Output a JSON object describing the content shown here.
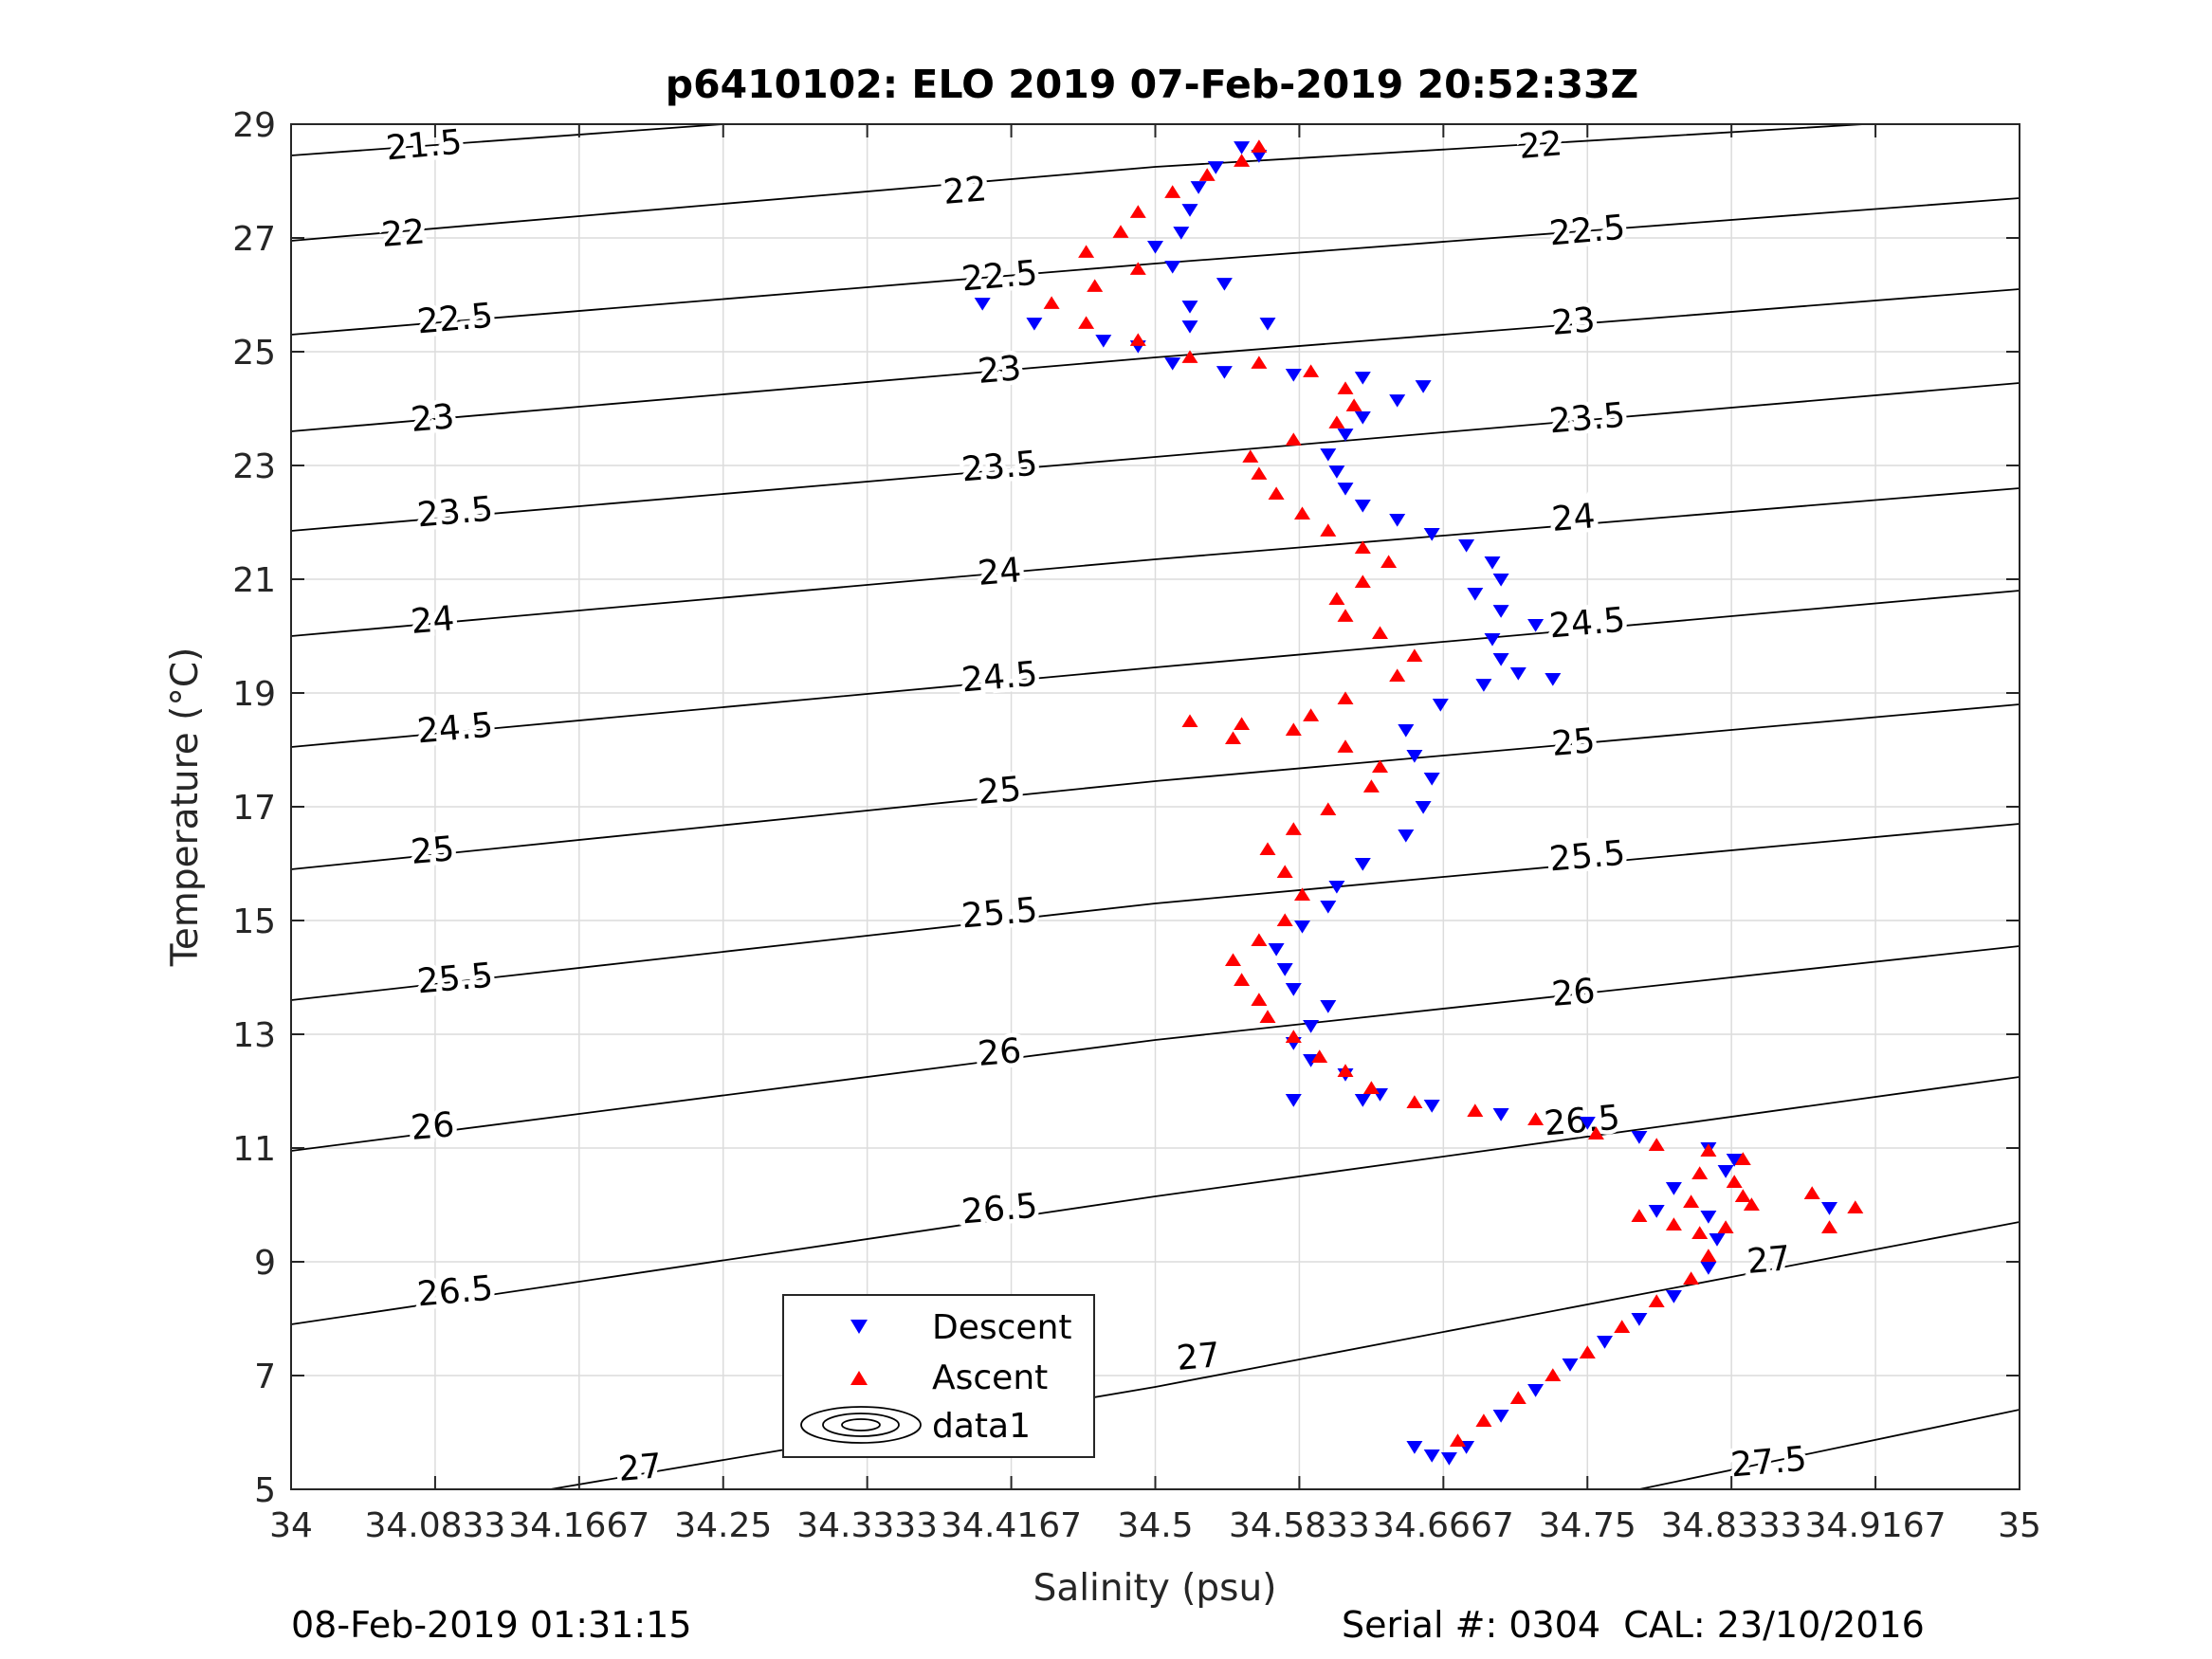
{
  "chart_data": {
    "type": "scatter",
    "title": "p6410102: ELO 2019 07-Feb-2019 20:52:33Z",
    "xlabel": "Salinity (psu)",
    "ylabel": "Temperature (°C)",
    "xlim": [
      34,
      35
    ],
    "ylim": [
      5,
      29
    ],
    "grid": true,
    "x_tick_labels": [
      "34",
      "34.0833",
      "34.1667",
      "34.25",
      "34.3333",
      "34.4167",
      "34.5",
      "34.5833",
      "34.6667",
      "34.75",
      "34.8333",
      "34.9167",
      "35"
    ],
    "y_tick_labels": [
      "5",
      "7",
      "9",
      "11",
      "13",
      "15",
      "17",
      "19",
      "21",
      "23",
      "25",
      "27",
      "29"
    ],
    "legend": {
      "position": "bottom-center",
      "entries": [
        "Descent",
        "Ascent",
        "data1"
      ]
    },
    "colors": {
      "descent": "#0000ff",
      "ascent": "#ff0000",
      "contour": "#000000",
      "grid": "#dcdcdc"
    },
    "density_contours": {
      "levels": [
        21.5,
        22,
        22.5,
        23,
        23.5,
        24,
        24.5,
        25,
        25.5,
        26,
        26.5,
        27,
        27.5
      ],
      "lines": [
        {
          "level": 21.5,
          "pts": [
            [
              34,
              28.45
            ],
            [
              34.25,
              29
            ]
          ]
        },
        {
          "level": 22,
          "pts": [
            [
              34,
              26.95
            ],
            [
              34.5,
              28.25
            ],
            [
              34.91,
              29
            ]
          ]
        },
        {
          "level": 22.5,
          "pts": [
            [
              34,
              25.3
            ],
            [
              34.5,
              26.55
            ],
            [
              35,
              27.7
            ]
          ]
        },
        {
          "level": 23,
          "pts": [
            [
              34,
              23.6
            ],
            [
              34.5,
              24.9
            ],
            [
              35,
              26.1
            ]
          ]
        },
        {
          "level": 23.5,
          "pts": [
            [
              34,
              21.85
            ],
            [
              34.5,
              23.15
            ],
            [
              35,
              24.45
            ]
          ]
        },
        {
          "level": 24,
          "pts": [
            [
              34,
              20.0
            ],
            [
              34.5,
              21.35
            ],
            [
              35,
              22.6
            ]
          ]
        },
        {
          "level": 24.5,
          "pts": [
            [
              34,
              18.05
            ],
            [
              34.5,
              19.45
            ],
            [
              35,
              20.8
            ]
          ]
        },
        {
          "level": 25,
          "pts": [
            [
              34,
              15.9
            ],
            [
              34.5,
              17.45
            ],
            [
              35,
              18.8
            ]
          ]
        },
        {
          "level": 25.5,
          "pts": [
            [
              34,
              13.6
            ],
            [
              34.5,
              15.3
            ],
            [
              35,
              16.7
            ]
          ]
        },
        {
          "level": 26,
          "pts": [
            [
              34,
              10.95
            ],
            [
              34.5,
              12.9
            ],
            [
              35,
              14.55
            ]
          ]
        },
        {
          "level": 26.5,
          "pts": [
            [
              34,
              7.9
            ],
            [
              34.5,
              10.15
            ],
            [
              35,
              12.25
            ]
          ]
        },
        {
          "level": 27,
          "pts": [
            [
              34.15,
              5
            ],
            [
              34.5,
              6.8
            ],
            [
              35,
              9.7
            ]
          ]
        },
        {
          "level": 27.5,
          "pts": [
            [
              34.78,
              5
            ],
            [
              35,
              6.4
            ]
          ]
        }
      ],
      "labels": [
        {
          "text": "21.5",
          "x": 34.077,
          "y": 28.6
        },
        {
          "text": "22",
          "x": 34.065,
          "y": 27.05
        },
        {
          "text": "22.5",
          "x": 34.095,
          "y": 25.55
        },
        {
          "text": "23",
          "x": 34.082,
          "y": 23.8
        },
        {
          "text": "23.5",
          "x": 34.095,
          "y": 22.15
        },
        {
          "text": "24",
          "x": 34.082,
          "y": 20.25
        },
        {
          "text": "24.5",
          "x": 34.095,
          "y": 18.35
        },
        {
          "text": "25",
          "x": 34.082,
          "y": 16.2
        },
        {
          "text": "25.5",
          "x": 34.095,
          "y": 13.95
        },
        {
          "text": "26",
          "x": 34.082,
          "y": 11.35
        },
        {
          "text": "26.5",
          "x": 34.095,
          "y": 8.45
        },
        {
          "text": "22",
          "x": 34.39,
          "y": 27.8
        },
        {
          "text": "22.5",
          "x": 34.41,
          "y": 26.3
        },
        {
          "text": "23",
          "x": 34.41,
          "y": 24.65
        },
        {
          "text": "23.5",
          "x": 34.41,
          "y": 22.95
        },
        {
          "text": "24",
          "x": 34.41,
          "y": 21.1
        },
        {
          "text": "24.5",
          "x": 34.41,
          "y": 19.25
        },
        {
          "text": "25",
          "x": 34.41,
          "y": 17.25
        },
        {
          "text": "25.5",
          "x": 34.41,
          "y": 15.1
        },
        {
          "text": "26",
          "x": 34.41,
          "y": 12.65
        },
        {
          "text": "26.5",
          "x": 34.41,
          "y": 9.9
        },
        {
          "text": "27",
          "x": 34.202,
          "y": 5.35
        },
        {
          "text": "27",
          "x": 34.525,
          "y": 7.3
        },
        {
          "text": "22",
          "x": 34.723,
          "y": 28.6
        },
        {
          "text": "22.5",
          "x": 34.75,
          "y": 27.1
        },
        {
          "text": "23",
          "x": 34.742,
          "y": 25.5
        },
        {
          "text": "23.5",
          "x": 34.75,
          "y": 23.8
        },
        {
          "text": "24",
          "x": 34.742,
          "y": 22.05
        },
        {
          "text": "24.5",
          "x": 34.75,
          "y": 20.2
        },
        {
          "text": "25",
          "x": 34.742,
          "y": 18.1
        },
        {
          "text": "25.5",
          "x": 34.75,
          "y": 16.1
        },
        {
          "text": "26",
          "x": 34.742,
          "y": 13.7
        },
        {
          "text": "26.5",
          "x": 34.747,
          "y": 11.45
        },
        {
          "text": "27",
          "x": 34.855,
          "y": 9.0
        },
        {
          "text": "27.5",
          "x": 34.855,
          "y": 5.45
        }
      ]
    },
    "series": [
      {
        "name": "Descent",
        "marker": "triangle-down",
        "color": "#0000ff",
        "points": [
          [
            34.66,
            5.6
          ],
          [
            34.68,
            5.75
          ],
          [
            34.7,
            6.3
          ],
          [
            34.72,
            6.75
          ],
          [
            34.74,
            7.2
          ],
          [
            34.76,
            7.6
          ],
          [
            34.78,
            8.0
          ],
          [
            34.8,
            8.4
          ],
          [
            34.82,
            8.9
          ],
          [
            34.825,
            9.4
          ],
          [
            34.82,
            9.8
          ],
          [
            34.79,
            9.9
          ],
          [
            34.8,
            10.3
          ],
          [
            34.83,
            10.6
          ],
          [
            34.835,
            10.8
          ],
          [
            34.82,
            11.0
          ],
          [
            34.78,
            11.2
          ],
          [
            34.75,
            11.45
          ],
          [
            34.7,
            11.6
          ],
          [
            34.66,
            11.75
          ],
          [
            34.63,
            11.95
          ],
          [
            34.61,
            12.3
          ],
          [
            34.59,
            12.55
          ],
          [
            34.58,
            12.85
          ],
          [
            34.59,
            13.15
          ],
          [
            34.6,
            13.5
          ],
          [
            34.58,
            13.8
          ],
          [
            34.575,
            14.15
          ],
          [
            34.57,
            14.5
          ],
          [
            34.585,
            14.9
          ],
          [
            34.6,
            15.25
          ],
          [
            34.605,
            15.6
          ],
          [
            34.62,
            16.0
          ],
          [
            34.645,
            16.5
          ],
          [
            34.655,
            17.0
          ],
          [
            34.66,
            17.5
          ],
          [
            34.65,
            17.9
          ],
          [
            34.645,
            18.35
          ],
          [
            34.665,
            18.8
          ],
          [
            34.69,
            19.15
          ],
          [
            34.71,
            19.35
          ],
          [
            34.73,
            19.25
          ],
          [
            34.7,
            19.6
          ],
          [
            34.695,
            19.95
          ],
          [
            34.72,
            20.2
          ],
          [
            34.7,
            20.45
          ],
          [
            34.685,
            20.75
          ],
          [
            34.7,
            21.0
          ],
          [
            34.695,
            21.3
          ],
          [
            34.68,
            21.6
          ],
          [
            34.66,
            21.8
          ],
          [
            34.64,
            22.05
          ],
          [
            34.62,
            22.3
          ],
          [
            34.61,
            22.6
          ],
          [
            34.605,
            22.9
          ],
          [
            34.6,
            23.2
          ],
          [
            34.61,
            23.55
          ],
          [
            34.62,
            23.85
          ],
          [
            34.64,
            24.15
          ],
          [
            34.655,
            24.4
          ],
          [
            34.62,
            24.55
          ],
          [
            34.58,
            24.6
          ],
          [
            34.54,
            24.65
          ],
          [
            34.51,
            24.8
          ],
          [
            34.49,
            25.1
          ],
          [
            34.52,
            25.45
          ],
          [
            34.565,
            25.5
          ],
          [
            34.52,
            25.8
          ],
          [
            34.54,
            26.2
          ],
          [
            34.51,
            26.5
          ],
          [
            34.5,
            26.85
          ],
          [
            34.515,
            27.1
          ],
          [
            34.52,
            27.5
          ],
          [
            34.525,
            27.9
          ],
          [
            34.535,
            28.25
          ],
          [
            34.56,
            28.45
          ],
          [
            34.55,
            28.6
          ],
          [
            34.4,
            25.85
          ],
          [
            34.47,
            25.2
          ],
          [
            34.43,
            25.5
          ],
          [
            34.62,
            11.85
          ],
          [
            34.58,
            11.85
          ],
          [
            34.65,
            5.75
          ],
          [
            34.67,
            5.55
          ],
          [
            34.89,
            9.95
          ]
        ]
      },
      {
        "name": "Ascent",
        "marker": "triangle-up",
        "color": "#ff0000",
        "points": [
          [
            34.675,
            5.85
          ],
          [
            34.69,
            6.2
          ],
          [
            34.71,
            6.6
          ],
          [
            34.73,
            7.0
          ],
          [
            34.75,
            7.4
          ],
          [
            34.77,
            7.85
          ],
          [
            34.79,
            8.3
          ],
          [
            34.81,
            8.7
          ],
          [
            34.82,
            9.1
          ],
          [
            34.815,
            9.5
          ],
          [
            34.8,
            9.65
          ],
          [
            34.78,
            9.8
          ],
          [
            34.81,
            10.05
          ],
          [
            34.835,
            10.4
          ],
          [
            34.84,
            10.8
          ],
          [
            34.82,
            10.95
          ],
          [
            34.79,
            11.05
          ],
          [
            34.755,
            11.25
          ],
          [
            34.72,
            11.5
          ],
          [
            34.685,
            11.65
          ],
          [
            34.65,
            11.8
          ],
          [
            34.625,
            12.05
          ],
          [
            34.61,
            12.35
          ],
          [
            34.595,
            12.6
          ],
          [
            34.58,
            12.95
          ],
          [
            34.565,
            13.3
          ],
          [
            34.56,
            13.6
          ],
          [
            34.55,
            13.95
          ],
          [
            34.545,
            14.3
          ],
          [
            34.56,
            14.65
          ],
          [
            34.575,
            15.0
          ],
          [
            34.585,
            15.45
          ],
          [
            34.575,
            15.85
          ],
          [
            34.565,
            16.25
          ],
          [
            34.58,
            16.6
          ],
          [
            34.6,
            16.95
          ],
          [
            34.625,
            17.35
          ],
          [
            34.63,
            17.7
          ],
          [
            34.61,
            18.05
          ],
          [
            34.58,
            18.35
          ],
          [
            34.55,
            18.45
          ],
          [
            34.52,
            18.5
          ],
          [
            34.545,
            18.2
          ],
          [
            34.59,
            18.6
          ],
          [
            34.61,
            18.9
          ],
          [
            34.64,
            19.3
          ],
          [
            34.65,
            19.65
          ],
          [
            34.63,
            20.05
          ],
          [
            34.61,
            20.35
          ],
          [
            34.605,
            20.65
          ],
          [
            34.62,
            20.95
          ],
          [
            34.635,
            21.3
          ],
          [
            34.62,
            21.55
          ],
          [
            34.6,
            21.85
          ],
          [
            34.585,
            22.15
          ],
          [
            34.57,
            22.5
          ],
          [
            34.56,
            22.85
          ],
          [
            34.555,
            23.15
          ],
          [
            34.58,
            23.45
          ],
          [
            34.605,
            23.75
          ],
          [
            34.615,
            24.05
          ],
          [
            34.61,
            24.35
          ],
          [
            34.59,
            24.65
          ],
          [
            34.56,
            24.8
          ],
          [
            34.52,
            24.9
          ],
          [
            34.49,
            25.2
          ],
          [
            34.46,
            25.5
          ],
          [
            34.44,
            25.85
          ],
          [
            34.465,
            26.15
          ],
          [
            34.49,
            26.45
          ],
          [
            34.46,
            26.75
          ],
          [
            34.48,
            27.1
          ],
          [
            34.49,
            27.45
          ],
          [
            34.51,
            27.8
          ],
          [
            34.53,
            28.1
          ],
          [
            34.55,
            28.35
          ],
          [
            34.56,
            28.6
          ],
          [
            34.845,
            10.0
          ],
          [
            34.88,
            10.2
          ],
          [
            34.905,
            9.95
          ],
          [
            34.89,
            9.6
          ],
          [
            34.83,
            9.6
          ],
          [
            34.84,
            10.15
          ],
          [
            34.815,
            10.55
          ]
        ]
      }
    ]
  },
  "footer": {
    "timestamp": "08-Feb-2019 01:31:15",
    "serial": "Serial #: 0304  CAL: 23/10/2016"
  }
}
